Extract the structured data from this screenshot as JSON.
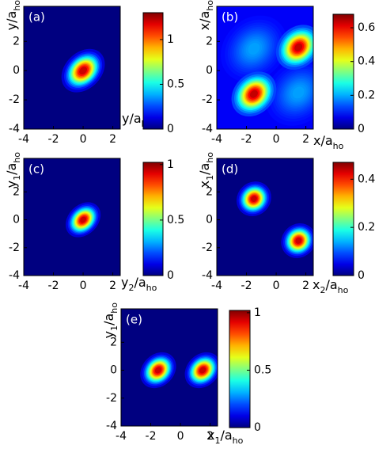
{
  "chart_data": [
    {
      "type": "heatmap",
      "panel_label": "(a)",
      "colormap": "jet",
      "xlabel": [
        {
          "text": "y/a",
          "sub": false
        },
        {
          "text": "ho",
          "sub": true
        }
      ],
      "ylabel": [
        {
          "text": "y/a",
          "sub": false
        },
        {
          "text": "ho",
          "sub": true
        }
      ],
      "xlim": [
        -4,
        2.5
      ],
      "ylim": [
        -4,
        4.4
      ],
      "xticks": [
        -4,
        -2,
        0,
        2
      ],
      "yticks": [
        -4,
        -2,
        0,
        2
      ],
      "background": 0,
      "peaks": [
        {
          "x": 0,
          "y": 0,
          "value": 1.3,
          "width": [
            0.75,
            0.55
          ],
          "angle": 45
        }
      ],
      "clim": [
        0,
        1.3
      ],
      "cticks": [
        0,
        0.5,
        1
      ]
    },
    {
      "type": "heatmap",
      "panel_label": "(b)",
      "colormap": "jet",
      "xlabel": [
        {
          "text": "x/a",
          "sub": false
        },
        {
          "text": "ho",
          "sub": true
        }
      ],
      "ylabel": [
        {
          "text": "x/a",
          "sub": false
        },
        {
          "text": "ho",
          "sub": true
        }
      ],
      "xlim": [
        -4,
        2.5
      ],
      "ylim": [
        -4,
        4.4
      ],
      "xticks": [
        -4,
        -2,
        0,
        2
      ],
      "yticks": [
        -4,
        -2,
        0,
        2
      ],
      "background": 0.08,
      "peaks": [
        {
          "x": -1.5,
          "y": 1.5,
          "value": 0.2,
          "width": [
            1.1,
            0.9
          ],
          "angle": 45
        },
        {
          "x": 1.5,
          "y": -1.5,
          "value": 0.2,
          "width": [
            1.1,
            0.9
          ],
          "angle": 45
        },
        {
          "x": -1.5,
          "y": -1.6,
          "value": 0.68,
          "width": [
            0.75,
            0.6
          ],
          "angle": 45
        },
        {
          "x": 1.5,
          "y": 1.6,
          "value": 0.68,
          "width": [
            0.75,
            0.6
          ],
          "angle": 45
        }
      ],
      "clim": [
        0,
        0.68
      ],
      "cticks": [
        0,
        0.2,
        0.4,
        0.6
      ]
    },
    {
      "type": "heatmap",
      "panel_label": "(c)",
      "colormap": "jet",
      "xlabel": [
        {
          "text": "y",
          "sub": false
        },
        {
          "text": "2",
          "sub": true
        },
        {
          "text": "/a",
          "sub": false
        },
        {
          "text": "ho",
          "sub": true
        }
      ],
      "ylabel": [
        {
          "text": "y",
          "sub": false
        },
        {
          "text": "1",
          "sub": true
        },
        {
          "text": "/a",
          "sub": false
        },
        {
          "text": "ho",
          "sub": true
        }
      ],
      "xlim": [
        -4,
        2.5
      ],
      "ylim": [
        -4,
        4.4
      ],
      "xticks": [
        -4,
        -2,
        0,
        2
      ],
      "yticks": [
        -4,
        -2,
        0,
        2
      ],
      "background": 0,
      "peaks": [
        {
          "x": 0,
          "y": 0,
          "value": 1.02,
          "width": [
            0.6,
            0.45
          ],
          "angle": 45
        }
      ],
      "clim": [
        0,
        1.02
      ],
      "cticks": [
        0,
        0.5,
        1
      ]
    },
    {
      "type": "heatmap",
      "panel_label": "(d)",
      "colormap": "jet",
      "xlabel": [
        {
          "text": "x",
          "sub": false
        },
        {
          "text": "2",
          "sub": true
        },
        {
          "text": "/a",
          "sub": false
        },
        {
          "text": "ho",
          "sub": true
        }
      ],
      "ylabel": [
        {
          "text": "x",
          "sub": false
        },
        {
          "text": "1",
          "sub": true
        },
        {
          "text": "/a",
          "sub": false
        },
        {
          "text": "ho",
          "sub": true
        }
      ],
      "xlim": [
        -4,
        2.5
      ],
      "ylim": [
        -4,
        4.4
      ],
      "xticks": [
        -4,
        -2,
        0,
        2
      ],
      "yticks": [
        -4,
        -2,
        0,
        2
      ],
      "background": 0,
      "peaks": [
        {
          "x": -1.5,
          "y": 1.5,
          "value": 0.47,
          "width": [
            0.55,
            0.5
          ],
          "angle": 45
        },
        {
          "x": 1.5,
          "y": -1.5,
          "value": 0.47,
          "width": [
            0.55,
            0.5
          ],
          "angle": 45
        }
      ],
      "clim": [
        0,
        0.47
      ],
      "cticks": [
        0,
        0.2,
        0.4
      ]
    },
    {
      "type": "heatmap",
      "panel_label": "(e)",
      "colormap": "jet",
      "xlabel": [
        {
          "text": "x",
          "sub": false
        },
        {
          "text": "1",
          "sub": true
        },
        {
          "text": "/a",
          "sub": false
        },
        {
          "text": "ho",
          "sub": true
        }
      ],
      "ylabel": [
        {
          "text": "y",
          "sub": false
        },
        {
          "text": "1",
          "sub": true
        },
        {
          "text": "/a",
          "sub": false
        },
        {
          "text": "ho",
          "sub": true
        }
      ],
      "xlim": [
        -4,
        2.5
      ],
      "ylim": [
        -4,
        4.4
      ],
      "xticks": [
        -4,
        -2,
        0,
        2
      ],
      "yticks": [
        -4,
        -2,
        0,
        2
      ],
      "background": 0,
      "peaks": [
        {
          "x": -1.5,
          "y": 0,
          "value": 1.02,
          "width": [
            0.6,
            0.48
          ],
          "angle": 45
        },
        {
          "x": 1.5,
          "y": 0,
          "value": 1.02,
          "width": [
            0.6,
            0.48
          ],
          "angle": 45
        }
      ],
      "clim": [
        0,
        1.02
      ],
      "cticks": [
        0,
        0.5,
        1
      ]
    }
  ]
}
